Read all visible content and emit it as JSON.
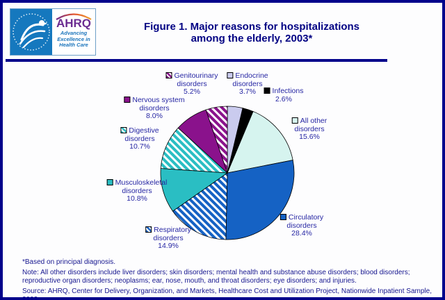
{
  "page": {
    "background": "#FDFDFE",
    "frame_color": "#00008B"
  },
  "logo": {
    "hhs_emblem": "U.S. Department of Health & Human Services eagle",
    "ahrq": "AHRQ",
    "tagline_lines": [
      "Advancing",
      "Excellence in",
      "Health Care"
    ],
    "hhs_blue": "#1578BE",
    "ahrq_purple": "#6B2C91",
    "tagline_blue": "#1B75BC"
  },
  "title": {
    "line1": "Figure 1. Major reasons for hospitalizations",
    "line2": "among the elderly, 2003*"
  },
  "chart_data": {
    "type": "pie",
    "title": "Major reasons for hospitalizations among the elderly, 2003",
    "start_angle_deg": 0,
    "direction": "clockwise",
    "units": "percent",
    "slices": [
      {
        "label": "Endocrine disorders",
        "label_lines": [
          "Endocrine",
          "disorders"
        ],
        "value": 3.7,
        "pct": "3.7%",
        "color": "#CACBEE",
        "pattern": "solid"
      },
      {
        "label": "Infections",
        "label_lines": [
          "Infections"
        ],
        "value": 2.6,
        "pct": "2.6%",
        "color": "#000000",
        "pattern": "solid"
      },
      {
        "label": "All other disorders",
        "label_lines": [
          "All other",
          "disorders"
        ],
        "value": 15.6,
        "pct": "15.6%",
        "color": "#D6F4EF",
        "pattern": "solid"
      },
      {
        "label": "Circulatory disorders",
        "label_lines": [
          "Circulatory",
          "disorders"
        ],
        "value": 28.4,
        "pct": "28.4%",
        "color": "#1562C4",
        "pattern": "solid"
      },
      {
        "label": "Respiratory disorders",
        "label_lines": [
          "Respiratory",
          "disorders"
        ],
        "value": 14.9,
        "pct": "14.9%",
        "color": "#1562C4",
        "pattern": "hatch"
      },
      {
        "label": "Musculoskeletal disorders",
        "label_lines": [
          "Musculoskeletal",
          "disorders"
        ],
        "value": 10.8,
        "pct": "10.8%",
        "color": "#2ABEC3",
        "pattern": "solid"
      },
      {
        "label": "Digestive disorders",
        "label_lines": [
          "Digestive",
          "disorders"
        ],
        "value": 10.7,
        "pct": "10.7%",
        "color": "#2ABEC3",
        "pattern": "hatch"
      },
      {
        "label": "Nervous system disorders",
        "label_lines": [
          "Nervous system",
          "disorders"
        ],
        "value": 8.0,
        "pct": "8.0%",
        "color": "#8A128C",
        "pattern": "solid"
      },
      {
        "label": "Genitourinary disorders",
        "label_lines": [
          "Genitourinary",
          "disorders"
        ],
        "value": 5.2,
        "pct": "5.2%",
        "color": "#8A128C",
        "pattern": "hatch"
      }
    ]
  },
  "footer": {
    "footnote": "*Based on principal diagnosis.",
    "note": "Note: All other disorders include liver disorders; skin disorders; mental health and substance abuse disorders; blood disorders; reproductive organ disorders; neoplasms; ear, nose, mouth, and throat disorders; eye disorders; and injuries.",
    "source": "Source: AHRQ, Center for Delivery, Organization, and Markets, Healthcare Cost and Utilization Project, Nationwide Inpatient Sample, 2003."
  }
}
